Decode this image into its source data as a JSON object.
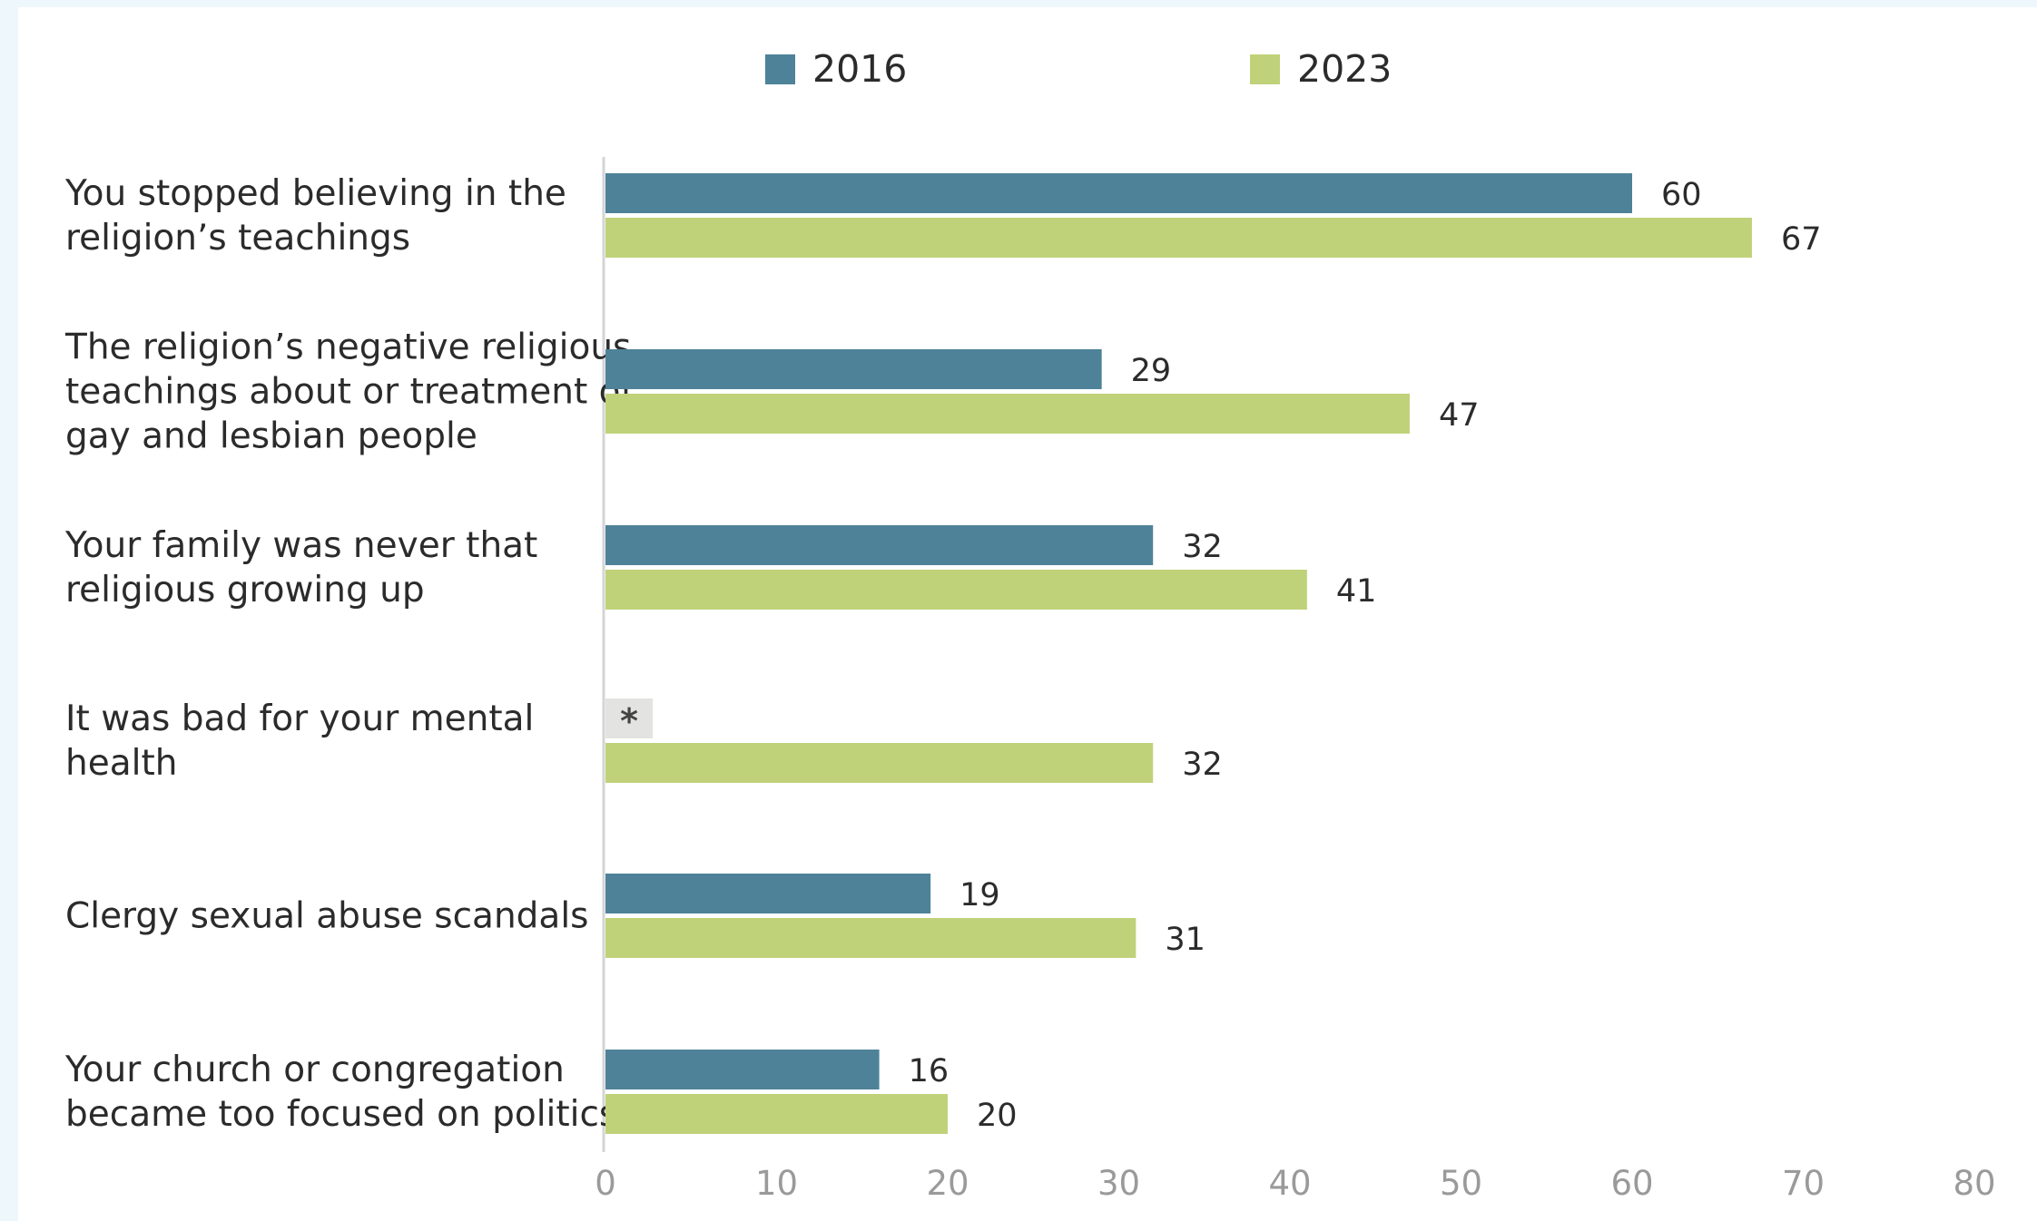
{
  "chart_data": {
    "type": "bar",
    "orientation": "horizontal",
    "categories": [
      [
        "You stopped believing in the",
        "religion’s teachings"
      ],
      [
        "The religion’s negative religious",
        "teachings about or treatment of",
        "gay and lesbian people"
      ],
      [
        "Your family was never that",
        "religious growing up"
      ],
      [
        "It was bad for your mental",
        "health"
      ],
      [
        "Clergy sexual abuse scandals"
      ],
      [
        "Your church or congregation",
        "became too focused on politics"
      ]
    ],
    "series": [
      {
        "name": "2016",
        "color": "#4e8299",
        "values": [
          60,
          29,
          32,
          null,
          19,
          16
        ],
        "labels": [
          "60",
          "29",
          "32",
          "*",
          "19",
          "16"
        ]
      },
      {
        "name": "2023",
        "color": "#bfd27a",
        "values": [
          67,
          47,
          41,
          32,
          31,
          20
        ],
        "labels": [
          "67",
          "47",
          "41",
          "32",
          "31",
          "20"
        ]
      }
    ],
    "missing_marker": {
      "text": "*",
      "color": "#e3e3e1"
    },
    "xlim": [
      0,
      80
    ],
    "xticks": [
      "0",
      "10",
      "20",
      "30",
      "40",
      "50",
      "60",
      "70",
      "80"
    ],
    "grid": false,
    "legend_position": "top"
  }
}
